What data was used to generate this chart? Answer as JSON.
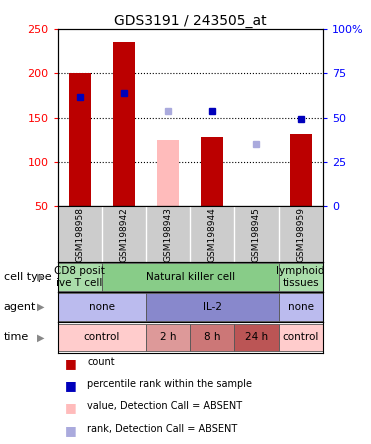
{
  "title": "GDS3191 / 243505_at",
  "samples": [
    "GSM198958",
    "GSM198942",
    "GSM198943",
    "GSM198944",
    "GSM198945",
    "GSM198959"
  ],
  "bar_values": [
    200,
    235,
    125,
    128,
    0,
    132
  ],
  "bar_colors": [
    "#bb0000",
    "#bb0000",
    "#ffbbbb",
    "#bb0000",
    "#ffbbbb",
    "#bb0000"
  ],
  "bar_absent": [
    false,
    false,
    true,
    false,
    true,
    false
  ],
  "percentile_values": [
    173,
    178,
    158,
    158,
    120,
    148
  ],
  "percentile_absent": [
    false,
    false,
    true,
    false,
    true,
    false
  ],
  "ylim_left": [
    50,
    250
  ],
  "ylim_right": [
    0,
    100
  ],
  "yticks_left": [
    50,
    100,
    150,
    200,
    250
  ],
  "yticks_right": [
    0,
    25,
    50,
    75,
    100
  ],
  "yticklabels_right": [
    "0",
    "25",
    "50",
    "75",
    "100%"
  ],
  "dotted_lines": [
    100,
    150,
    200
  ],
  "cell_type_groups": [
    {
      "label": "CD8 posit\nive T cell",
      "cols": [
        0,
        0
      ],
      "color": "#aaddaa"
    },
    {
      "label": "Natural killer cell",
      "cols": [
        1,
        4
      ],
      "color": "#88cc88"
    },
    {
      "label": "lymphoid\ntissues",
      "cols": [
        5,
        5
      ],
      "color": "#aaddaa"
    }
  ],
  "agent_groups": [
    {
      "label": "none",
      "cols": [
        0,
        1
      ],
      "color": "#bbbbee"
    },
    {
      "label": "IL-2",
      "cols": [
        2,
        4
      ],
      "color": "#8888cc"
    },
    {
      "label": "none",
      "cols": [
        5,
        5
      ],
      "color": "#bbbbee"
    }
  ],
  "time_groups": [
    {
      "label": "control",
      "cols": [
        0,
        1
      ],
      "color": "#ffcccc"
    },
    {
      "label": "2 h",
      "cols": [
        2,
        2
      ],
      "color": "#dd9999"
    },
    {
      "label": "8 h",
      "cols": [
        3,
        3
      ],
      "color": "#cc7777"
    },
    {
      "label": "24 h",
      "cols": [
        4,
        4
      ],
      "color": "#bb5555"
    },
    {
      "label": "control",
      "cols": [
        5,
        5
      ],
      "color": "#ffcccc"
    }
  ],
  "legend_items": [
    {
      "color": "#bb0000",
      "label": "count"
    },
    {
      "color": "#0000bb",
      "label": "percentile rank within the sample"
    },
    {
      "color": "#ffbbbb",
      "label": "value, Detection Call = ABSENT"
    },
    {
      "color": "#aaaadd",
      "label": "rank, Detection Call = ABSENT"
    }
  ],
  "row_labels": [
    "cell type",
    "agent",
    "time"
  ],
  "sample_bg": "#cccccc",
  "plot_bg": "#ffffff",
  "fig_w": 3.71,
  "fig_h": 4.44,
  "dpi": 100
}
